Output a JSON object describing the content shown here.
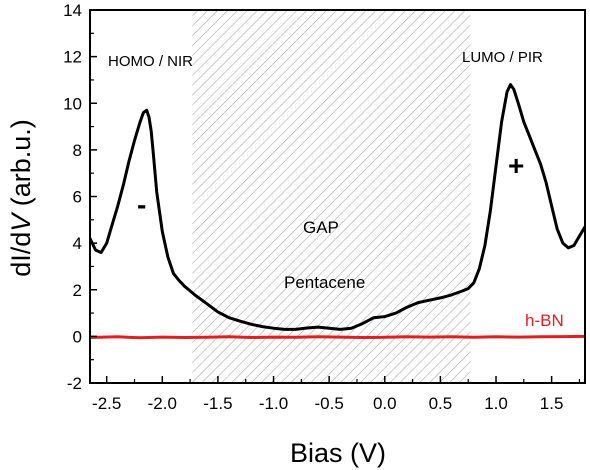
{
  "chart_data": {
    "type": "line",
    "xlabel": "Bias (V)",
    "ylabel_prefix": "dI/d",
    "ylabel_italic": "V",
    "ylabel_suffix": " (arb.u.)",
    "xlim": [
      -2.65,
      1.8
    ],
    "ylim": [
      -2,
      14
    ],
    "xticks": [
      -2.5,
      -2.0,
      -1.5,
      -1.0,
      -0.5,
      0.0,
      0.5,
      1.0,
      1.5
    ],
    "xtick_labels": [
      "-2.5",
      "-2.0",
      "-1.5",
      "-1.0",
      "-0.5",
      "0.0",
      "0.5",
      "1.0",
      "1.5"
    ],
    "yticks": [
      -2,
      0,
      2,
      4,
      6,
      8,
      10,
      12,
      14
    ],
    "ytick_labels": [
      "-2",
      "0",
      "2",
      "4",
      "6",
      "8",
      "10",
      "12",
      "14"
    ],
    "gap_region": {
      "x_start": -1.73,
      "x_end": 0.77,
      "pattern": "diagonal-hatch",
      "color": "#a0a0a0"
    },
    "series": [
      {
        "color": "#000000",
        "x": [
          -2.65,
          -2.6,
          -2.55,
          -2.5,
          -2.45,
          -2.4,
          -2.35,
          -2.3,
          -2.25,
          -2.2,
          -2.17,
          -2.14,
          -2.12,
          -2.1,
          -2.08,
          -2.05,
          -2.0,
          -1.95,
          -1.9,
          -1.85,
          -1.8,
          -1.75,
          -1.7,
          -1.6,
          -1.5,
          -1.4,
          -1.3,
          -1.2,
          -1.1,
          -1.0,
          -0.9,
          -0.8,
          -0.7,
          -0.6,
          -0.5,
          -0.4,
          -0.3,
          -0.2,
          -0.1,
          0.0,
          0.1,
          0.2,
          0.3,
          0.4,
          0.5,
          0.6,
          0.7,
          0.75,
          0.8,
          0.85,
          0.9,
          0.95,
          1.0,
          1.05,
          1.1,
          1.13,
          1.16,
          1.2,
          1.25,
          1.3,
          1.35,
          1.4,
          1.45,
          1.5,
          1.55,
          1.6,
          1.65,
          1.7,
          1.75,
          1.8
        ],
        "y": [
          4.2,
          3.7,
          3.6,
          4.0,
          4.8,
          5.6,
          6.5,
          7.5,
          8.4,
          9.2,
          9.6,
          9.7,
          9.4,
          8.8,
          7.8,
          6.2,
          4.5,
          3.4,
          2.7,
          2.4,
          2.15,
          1.95,
          1.75,
          1.4,
          1.05,
          0.8,
          0.65,
          0.52,
          0.42,
          0.35,
          0.3,
          0.3,
          0.36,
          0.4,
          0.35,
          0.3,
          0.35,
          0.55,
          0.8,
          0.85,
          1.0,
          1.25,
          1.45,
          1.55,
          1.65,
          1.78,
          1.95,
          2.05,
          2.3,
          2.9,
          3.9,
          5.4,
          7.3,
          9.2,
          10.5,
          10.8,
          10.6,
          10.0,
          9.2,
          8.6,
          8.0,
          7.4,
          6.6,
          5.6,
          4.6,
          4.0,
          3.8,
          3.9,
          4.3,
          4.7
        ]
      },
      {
        "color": "#e02020",
        "x": [
          -2.65,
          -2.4,
          -2.2,
          -2.0,
          -1.8,
          -1.6,
          -1.4,
          -1.2,
          -1.0,
          -0.8,
          -0.6,
          -0.4,
          -0.2,
          0.0,
          0.2,
          0.4,
          0.6,
          0.8,
          1.0,
          1.2,
          1.4,
          1.6,
          1.8
        ],
        "y": [
          -0.05,
          -0.02,
          -0.06,
          -0.03,
          -0.05,
          -0.04,
          -0.02,
          -0.05,
          -0.03,
          -0.04,
          -0.02,
          -0.03,
          -0.05,
          -0.04,
          -0.02,
          -0.03,
          -0.02,
          -0.04,
          -0.02,
          -0.03,
          -0.02,
          -0.01,
          0.0
        ]
      }
    ],
    "annotations": {
      "homo": "HOMO / NIR",
      "lumo": "LUMO / PIR",
      "gap": "GAP",
      "pentacene": "Pentacene",
      "hbn": "h-BN",
      "minus": "-",
      "plus": "+"
    }
  }
}
